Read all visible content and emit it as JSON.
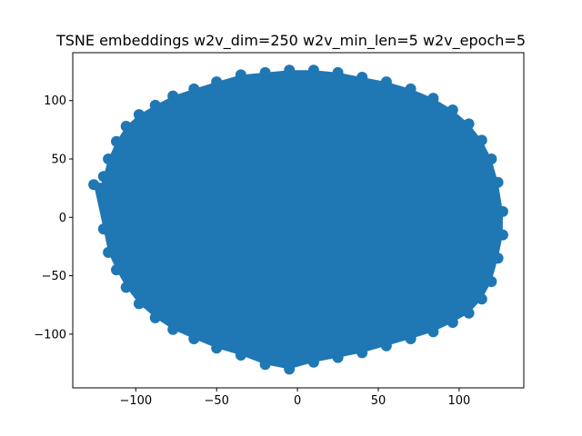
{
  "chart_data": {
    "type": "scatter",
    "title": "TSNE embeddings w2v_dim=250 w2v_min_len=5 w2v_epoch=5",
    "xlabel": "",
    "ylabel": "",
    "xlim": [
      -139,
      140
    ],
    "ylim": [
      -146,
      141
    ],
    "xticks": [
      -100,
      -50,
      0,
      50,
      100
    ],
    "yticks": [
      -100,
      -50,
      0,
      50,
      100
    ],
    "xtick_labels": [
      "−100",
      "−50",
      "0",
      "50",
      "100"
    ],
    "ytick_labels": [
      "−100",
      "−50",
      "0",
      "50",
      "100"
    ],
    "grid": false,
    "series": [
      {
        "color": "#1f77b4",
        "marker": "circle",
        "x": [
          -122,
          -120,
          -117,
          -112,
          -106,
          -98,
          -88,
          -77,
          -64,
          -50,
          -35,
          -20,
          -5,
          10,
          25,
          40,
          55,
          70,
          84,
          96,
          106,
          114,
          120,
          124,
          127,
          127,
          124,
          120,
          114,
          106,
          96,
          84,
          70,
          55,
          40,
          25,
          10,
          -5,
          -20,
          -35,
          -50,
          -64,
          -77,
          -88,
          -98,
          -106,
          -112,
          -117,
          -120,
          -126,
          -12,
          2,
          15,
          -8,
          -3,
          6,
          30,
          -40,
          45,
          -60,
          60,
          5,
          -25,
          35,
          -70,
          75,
          0,
          -15,
          20,
          -90,
          90,
          10,
          -45,
          50,
          -80,
          85
        ],
        "y": [
          25,
          35,
          50,
          65,
          78,
          88,
          96,
          104,
          110,
          116,
          122,
          124,
          126,
          126,
          124,
          120,
          116,
          110,
          102,
          92,
          80,
          66,
          50,
          30,
          5,
          -15,
          -35,
          -55,
          -70,
          -82,
          -90,
          -98,
          -104,
          -110,
          -116,
          -120,
          -124,
          -130,
          -126,
          -118,
          -112,
          -104,
          -96,
          -86,
          -74,
          -60,
          -45,
          -30,
          -10,
          28,
          0,
          20,
          -20,
          60,
          -70,
          40,
          10,
          -30,
          30,
          20,
          -40,
          -100,
          80,
          -80,
          -10,
          0,
          100,
          -120,
          90,
          5,
          -5,
          -50,
          60,
          -60,
          40,
          -30
        ]
      }
    ]
  }
}
